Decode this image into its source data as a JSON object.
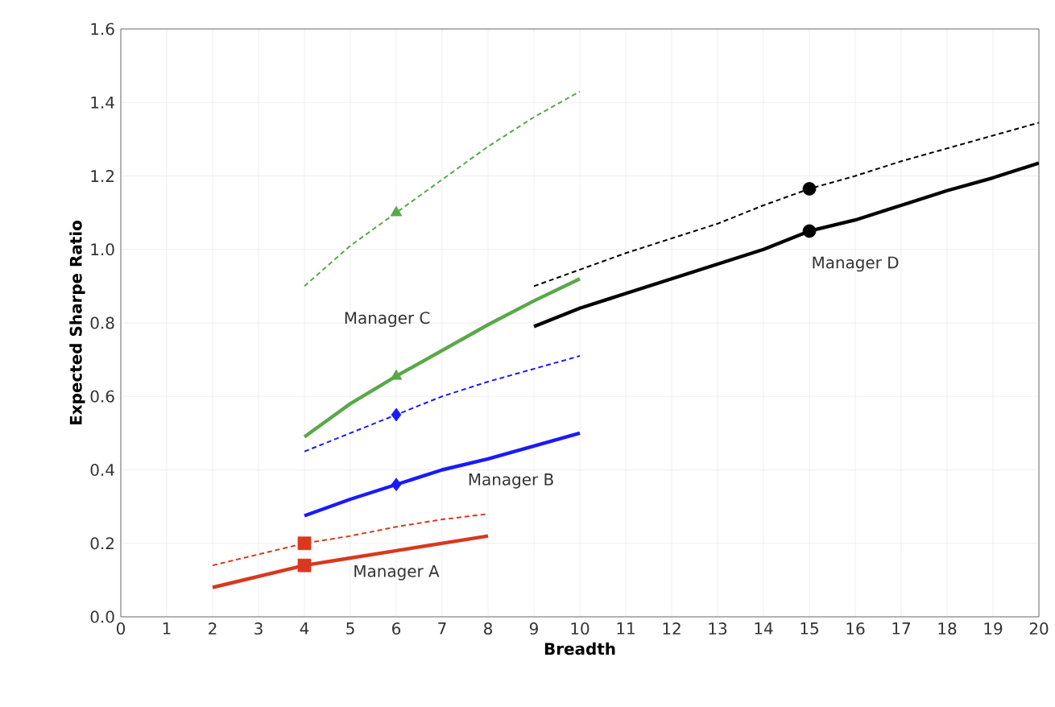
{
  "chart_data": {
    "type": "line",
    "xlabel": "Breadth",
    "ylabel": "Expected Sharpe Ratio",
    "xlim": [
      0,
      20
    ],
    "ylim": [
      0,
      1.6
    ],
    "xticks": [
      0,
      1,
      2,
      3,
      4,
      5,
      6,
      7,
      8,
      9,
      10,
      11,
      12,
      13,
      14,
      15,
      16,
      17,
      18,
      19,
      20
    ],
    "yticks": [
      {
        "value": 0,
        "label": "0.0"
      },
      {
        "value": 0.2,
        "label": "0.2"
      },
      {
        "value": 0.4,
        "label": "0.4"
      },
      {
        "value": 0.6,
        "label": "0.6"
      },
      {
        "value": 0.8,
        "label": "0.8"
      },
      {
        "value": 1.0,
        "label": "1.0"
      },
      {
        "value": 1.2,
        "label": "1.2"
      },
      {
        "value": 1.4,
        "label": "1.4"
      },
      {
        "value": 1.6,
        "label": "1.6"
      }
    ],
    "grid": true,
    "series": [
      {
        "line_style": "solid",
        "color": "#d9381e",
        "x": [
          2,
          3,
          4,
          5,
          6,
          7,
          8
        ],
        "values": [
          0.08,
          0.11,
          0.14,
          0.16,
          0.18,
          0.2,
          0.22
        ]
      },
      {
        "line_style": "dashed",
        "color": "#d9381e",
        "x": [
          2,
          3,
          4,
          5,
          6,
          7,
          8
        ],
        "values": [
          0.14,
          0.17,
          0.2,
          0.22,
          0.245,
          0.265,
          0.28
        ]
      },
      {
        "line_style": "solid",
        "color": "#1a1aff",
        "x": [
          4,
          5,
          6,
          7,
          8,
          9,
          10
        ],
        "values": [
          0.275,
          0.32,
          0.36,
          0.4,
          0.43,
          0.465,
          0.5
        ]
      },
      {
        "line_style": "dashed",
        "color": "#1a1aff",
        "x": [
          4,
          5,
          6,
          7,
          8,
          9,
          10
        ],
        "values": [
          0.45,
          0.5,
          0.55,
          0.6,
          0.64,
          0.675,
          0.71
        ]
      },
      {
        "line_style": "solid",
        "color": "#5aa84a",
        "x": [
          4,
          5,
          6,
          7,
          8,
          9,
          10
        ],
        "values": [
          0.49,
          0.58,
          0.655,
          0.725,
          0.795,
          0.86,
          0.92
        ]
      },
      {
        "line_style": "dashed",
        "color": "#5aa84a",
        "x": [
          4,
          5,
          6,
          7,
          8,
          9,
          10
        ],
        "values": [
          0.9,
          1.01,
          1.1,
          1.19,
          1.28,
          1.36,
          1.43
        ]
      },
      {
        "line_style": "solid",
        "color": "#000000",
        "x": [
          9,
          10,
          11,
          12,
          13,
          14,
          15,
          16,
          17,
          18,
          19,
          20
        ],
        "values": [
          0.79,
          0.84,
          0.88,
          0.92,
          0.96,
          1.0,
          1.05,
          1.08,
          1.12,
          1.16,
          1.195,
          1.235
        ]
      },
      {
        "line_style": "dashed",
        "color": "#000000",
        "x": [
          9,
          10,
          11,
          12,
          13,
          14,
          15,
          16,
          17,
          18,
          19,
          20
        ],
        "values": [
          0.9,
          0.945,
          0.99,
          1.03,
          1.07,
          1.12,
          1.165,
          1.2,
          1.24,
          1.275,
          1.31,
          1.345
        ]
      },
      {
        "type": "scatter",
        "marker": "square",
        "color": "#d9381e",
        "x": [
          4,
          4
        ],
        "values": [
          0.14,
          0.2
        ]
      },
      {
        "type": "scatter",
        "marker": "diamond",
        "color": "#1a1aff",
        "x": [
          6,
          6
        ],
        "values": [
          0.36,
          0.55
        ]
      },
      {
        "type": "scatter",
        "marker": "triangle",
        "color": "#5aa84a",
        "x": [
          6,
          6
        ],
        "values": [
          0.655,
          1.1
        ]
      },
      {
        "type": "scatter",
        "marker": "circle",
        "color": "#000000",
        "x": [
          15,
          15
        ],
        "values": [
          1.05,
          1.165
        ]
      }
    ],
    "annotations": [
      "Manager A",
      "Manager B",
      "Manager C",
      "Manager D"
    ]
  }
}
